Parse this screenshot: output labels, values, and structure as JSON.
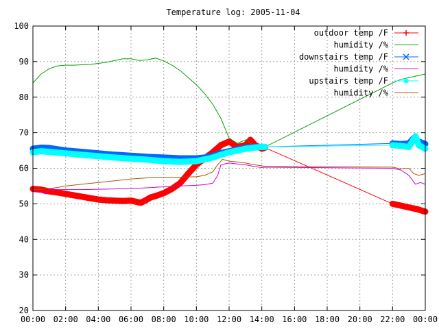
{
  "chart_data": {
    "type": "line",
    "title": "Temperature log: 2005-11-04",
    "xlabel": "",
    "ylabel": "",
    "ylim": [
      20,
      100
    ],
    "xlim_hours": [
      0,
      24
    ],
    "grid": true,
    "legend_position": "top-right",
    "y_ticks": [
      "20",
      "30",
      "40",
      "50",
      "60",
      "70",
      "80",
      "90",
      "100"
    ],
    "x_ticks": [
      "00:00",
      "02:00",
      "04:00",
      "06:00",
      "08:00",
      "10:00",
      "12:00",
      "14:00",
      "16:00",
      "18:00",
      "20:00",
      "22:00",
      "00:00"
    ],
    "series": [
      {
        "name": "outdoor temp /F",
        "color": "#ff0000",
        "marker": "plus",
        "x": [
          0,
          0.5,
          1,
          1.5,
          2,
          2.5,
          3,
          3.5,
          4,
          4.5,
          5,
          5.5,
          6,
          6.3,
          6.6,
          6.9,
          7.2,
          7.5,
          8,
          8.5,
          9,
          9.5,
          10,
          10.5,
          11,
          11.5,
          12,
          12.5,
          13,
          13.3,
          13.6,
          14,
          14.2,
          22,
          22.5,
          23,
          23.5,
          24
        ],
        "y": [
          54.2,
          54.0,
          53.5,
          53.2,
          52.8,
          52.4,
          52.0,
          51.6,
          51.2,
          51.0,
          50.9,
          50.8,
          50.9,
          50.6,
          50.3,
          51.0,
          51.8,
          52.2,
          53.0,
          54.2,
          55.8,
          58.5,
          61.0,
          62.8,
          64.5,
          66.5,
          67.5,
          66.0,
          66.5,
          68.0,
          66.5,
          65.5,
          65.8,
          50.0,
          49.5,
          49.0,
          48.5,
          47.8
        ]
      },
      {
        "name": "humidity /%",
        "color": "#00a000",
        "marker": "none",
        "x": [
          0,
          0.5,
          1,
          1.5,
          2,
          2.5,
          3,
          3.5,
          4,
          4.5,
          5,
          5.5,
          6,
          6.5,
          7,
          7.5,
          8,
          8.5,
          9,
          9.5,
          10,
          10.5,
          11,
          11.5,
          12,
          12.5,
          13,
          13.5,
          14,
          14.2,
          22,
          22.5,
          23,
          23.5,
          24
        ],
        "y": [
          84.0,
          86.5,
          88.0,
          88.8,
          89.0,
          89.0,
          89.1,
          89.2,
          89.5,
          89.8,
          90.3,
          90.8,
          90.8,
          90.3,
          90.5,
          91.0,
          90.2,
          89.0,
          87.5,
          85.5,
          83.5,
          81.0,
          78.0,
          74.0,
          68.5,
          67.0,
          68.0,
          66.5,
          66.0,
          66.0,
          84.0,
          85.0,
          85.5,
          86.0,
          86.5
        ]
      },
      {
        "name": "downstairs temp /F",
        "color": "#0066ff",
        "marker": "cross",
        "x": [
          0,
          0.5,
          1,
          2,
          3,
          4,
          5,
          6,
          7,
          8,
          9,
          10,
          10.5,
          11,
          11.5,
          12,
          12.5,
          13,
          13.5,
          14,
          14.2,
          22,
          22.5,
          23,
          23.3,
          23.6,
          24
        ],
        "y": [
          65.5,
          65.8,
          65.7,
          65.0,
          64.6,
          64.2,
          63.8,
          63.5,
          63.2,
          63.0,
          62.8,
          62.8,
          63.0,
          63.5,
          64.3,
          64.8,
          65.3,
          65.8,
          66.0,
          66.0,
          66.0,
          67.0,
          66.8,
          67.0,
          68.5,
          67.5,
          66.8
        ]
      },
      {
        "name": "humidity /%",
        "color": "#cc00cc",
        "marker": "none",
        "x": [
          0,
          0.5,
          0.8,
          1,
          2,
          3,
          4,
          5,
          6,
          7,
          8,
          9,
          10,
          10.5,
          11,
          11.3,
          11.5,
          12,
          12.5,
          13,
          13.5,
          14,
          14.2,
          22,
          22.5,
          23,
          23.4,
          23.7,
          24
        ],
        "y": [
          53.5,
          53.2,
          52.8,
          54.0,
          54.0,
          54.0,
          54.1,
          54.2,
          54.3,
          54.5,
          54.8,
          55.0,
          55.2,
          55.4,
          55.8,
          58.0,
          61.0,
          61.5,
          61.2,
          61.0,
          60.5,
          60.2,
          60.3,
          60.0,
          59.5,
          58.0,
          55.5,
          56.0,
          55.5
        ]
      },
      {
        "name": "upstairs temp /F",
        "color": "#00ffff",
        "marker": "star",
        "x": [
          0,
          0.5,
          1,
          2,
          3,
          4,
          5,
          6,
          7,
          8,
          9,
          10,
          10.5,
          11,
          11.5,
          12,
          12.5,
          13,
          13.5,
          14,
          14.2,
          22,
          22.5,
          23,
          23.2,
          23.4,
          23.6,
          24
        ],
        "y": [
          64.5,
          64.8,
          64.6,
          64.2,
          63.8,
          63.4,
          63.0,
          62.7,
          62.4,
          62.0,
          61.8,
          62.0,
          62.5,
          63.0,
          63.8,
          64.5,
          65.0,
          65.5,
          65.8,
          66.0,
          66.0,
          66.5,
          66.3,
          66.0,
          67.5,
          69.0,
          66.5,
          65.5
        ]
      },
      {
        "name": "humidity /%",
        "color": "#b05000",
        "marker": "none",
        "x": [
          0,
          0.5,
          1,
          1.5,
          2,
          3,
          4,
          5,
          6,
          7,
          8,
          9,
          10,
          10.5,
          11,
          11.3,
          11.6,
          12,
          12.5,
          13,
          13.5,
          14,
          14.2,
          22,
          22.5,
          23,
          23.3,
          23.6,
          24
        ],
        "y": [
          54.0,
          54.1,
          54.3,
          54.6,
          55.0,
          55.5,
          56.0,
          56.5,
          57.0,
          57.3,
          57.5,
          57.5,
          57.6,
          58.0,
          59.0,
          61.0,
          62.5,
          62.0,
          61.8,
          61.5,
          61.0,
          60.7,
          60.5,
          60.3,
          59.8,
          60.0,
          58.5,
          58.0,
          58.5
        ]
      }
    ]
  }
}
